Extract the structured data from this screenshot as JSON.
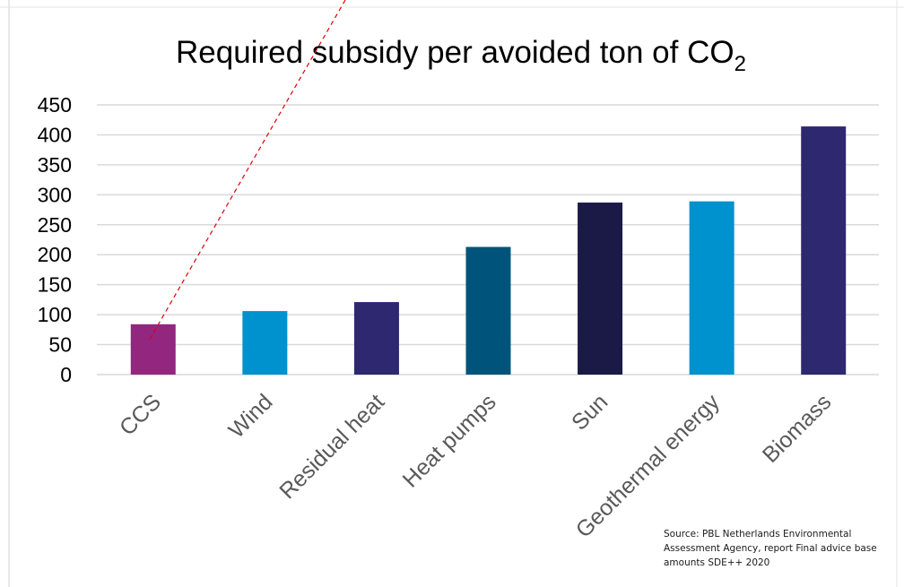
{
  "chart_data": {
    "type": "bar",
    "title": "Required subsidy per avoided ton of CO",
    "title_subscript": "2",
    "categories": [
      "CCS",
      "Wind",
      "Residual heat",
      "Heat pumps",
      "Sun",
      "Geothermal energy",
      "Biomass"
    ],
    "values": [
      84,
      106,
      121,
      213,
      287,
      289,
      414
    ],
    "colors": [
      "#93267f",
      "#0091cf",
      "#2e2871",
      "#00547b",
      "#1b1a47",
      "#0091cf",
      "#2e2871"
    ],
    "ylim": [
      0,
      450
    ],
    "yticks": [
      0,
      50,
      100,
      150,
      200,
      250,
      300,
      350,
      400,
      450
    ],
    "grid": true,
    "xlabel": "",
    "ylabel": ""
  },
  "source_note": "Source: PBL Netherlands Environmental Assessment Agency, report Final advice base amounts SDE++ 2020",
  "colors": {
    "gridline": "#d9d9d9",
    "annotation_line": "#e00000",
    "frame": "#bfbfbf"
  }
}
